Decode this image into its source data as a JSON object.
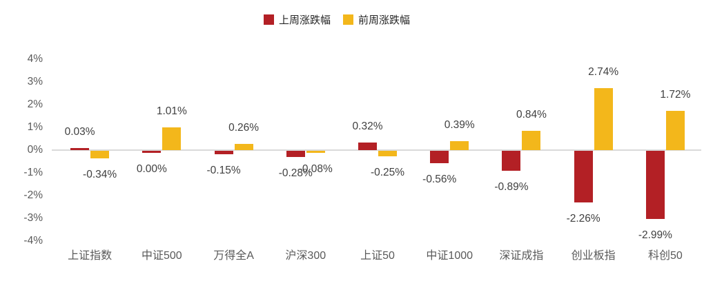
{
  "chart_data": {
    "type": "bar",
    "title": "",
    "legend_position": "top-center",
    "background": "#FFFFFF",
    "axis": {
      "ylim": [
        -4,
        4
      ],
      "ytick_step": 1,
      "yticks": [
        "4%",
        "3%",
        "2%",
        "1%",
        "0%",
        "-1%",
        "-2%",
        "-3%",
        "-4%"
      ],
      "zero_line_color": "#D9D9D9",
      "tick_color": "#595959",
      "grid": "zero-line-only"
    },
    "label_color": "#3F3F3F",
    "categories": [
      "上证指数",
      "中证500",
      "万得全A",
      "沪深300",
      "上证50",
      "中证1000",
      "深证成指",
      "创业板指",
      "科创50"
    ],
    "series": [
      {
        "name": "上周涨跌幅",
        "color": "#B32025",
        "values": [
          0.03,
          0.0,
          -0.15,
          -0.28,
          0.32,
          -0.56,
          -0.89,
          -2.26,
          -2.99
        ],
        "data_labels": [
          "0.03%",
          "0.00%",
          "-0.15%",
          "-0.28%",
          "0.32%",
          "-0.56%",
          "-0.89%",
          "-2.26%",
          "-2.99%"
        ]
      },
      {
        "name": "前周涨跌幅",
        "color": "#F3B71B",
        "values": [
          -0.34,
          1.01,
          0.26,
          -0.08,
          -0.25,
          0.39,
          0.84,
          2.74,
          1.72
        ],
        "data_labels": [
          "-0.34%",
          "1.01%",
          "0.26%",
          "-0.08%",
          "-0.25%",
          "0.39%",
          "0.84%",
          "2.74%",
          "1.72%"
        ]
      }
    ]
  }
}
